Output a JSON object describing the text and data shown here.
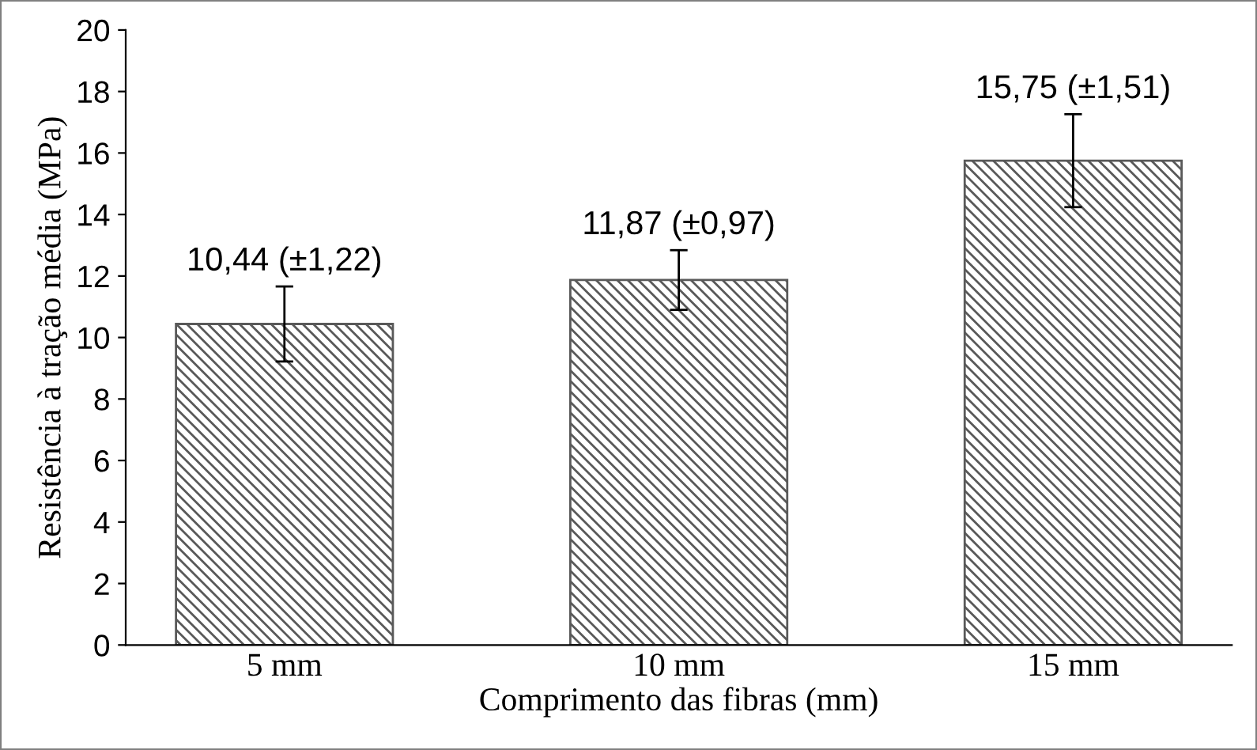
{
  "chart_data": {
    "type": "bar",
    "xlabel": "Comprimento das fibras (mm)",
    "ylabel": "Resistência à tração média (MPa)",
    "categories": [
      "5 mm",
      "10 mm",
      "15 mm"
    ],
    "values": [
      10.44,
      11.87,
      15.75
    ],
    "errors": [
      1.22,
      0.97,
      1.51
    ],
    "value_labels": [
      "10,44 (±1,22)",
      "11,87 (±0,97)",
      "15,75 (±1,51)"
    ],
    "color": "#595959",
    "ylim": [
      0,
      20
    ],
    "yticks": [
      0,
      2,
      4,
      6,
      8,
      10,
      12,
      14,
      16,
      18,
      20
    ],
    "grid": false,
    "legend": false
  }
}
